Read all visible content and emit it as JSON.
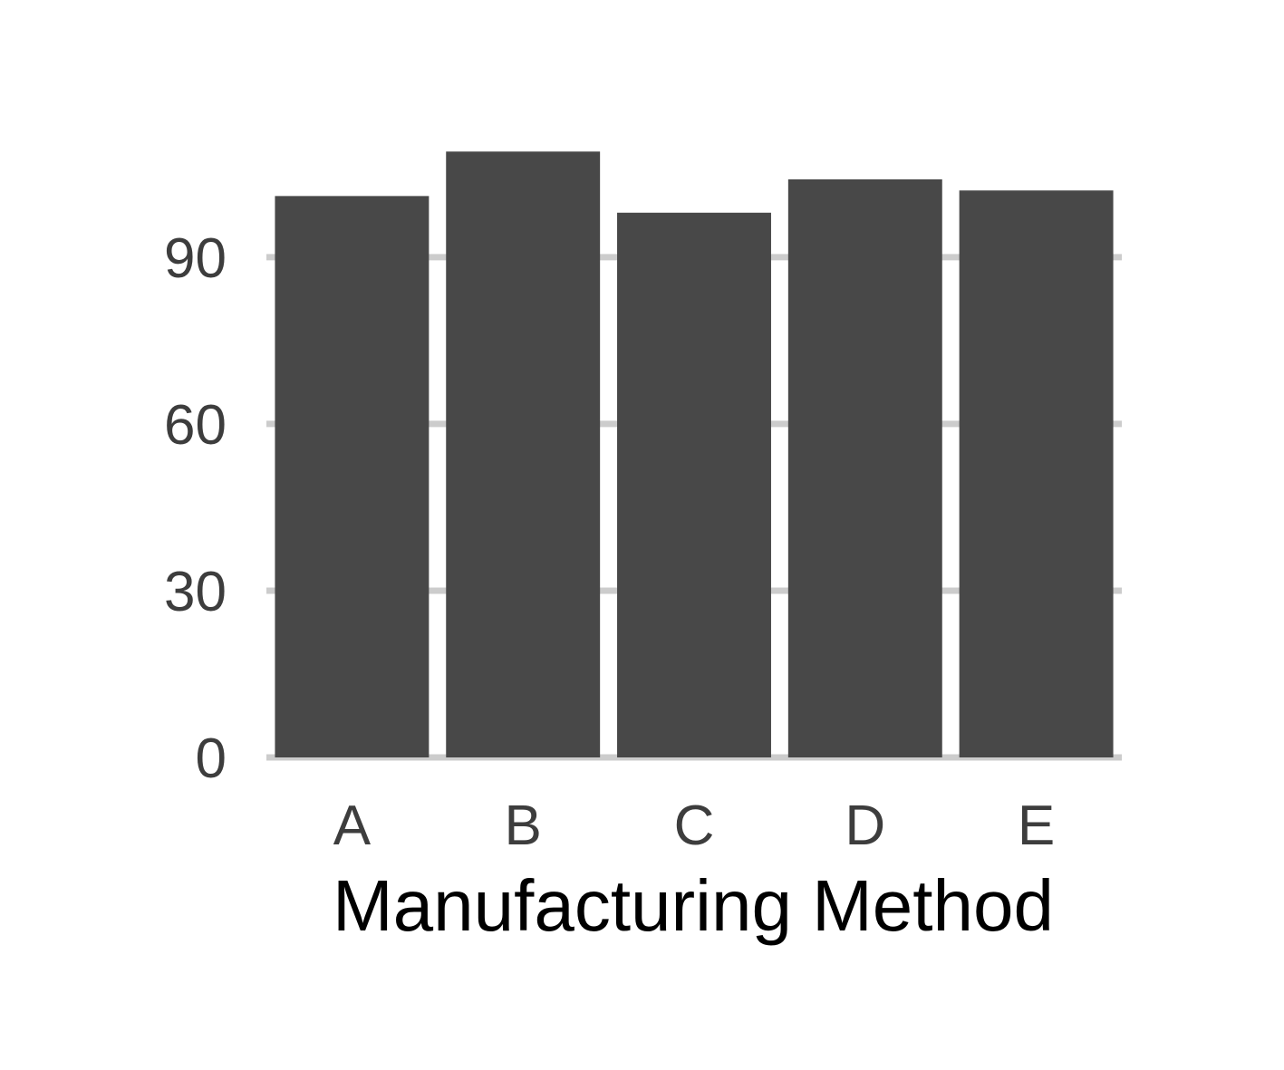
{
  "chart_data": {
    "type": "bar",
    "title": "",
    "xlabel": "Manufacturing Method",
    "ylabel": "",
    "categories": [
      "A",
      "B",
      "C",
      "D",
      "E"
    ],
    "values": [
      101,
      109,
      98,
      104,
      102
    ],
    "ylim": [
      0,
      109
    ],
    "yticks": [
      0,
      30,
      60,
      90
    ],
    "ytick_labels": [
      "0",
      "30",
      "60",
      "90"
    ],
    "grid": "horizontal major only",
    "legend": "none",
    "colors": {
      "bar": "#484848",
      "grid": "#cccccc",
      "tick_text": "#3d3d3d",
      "axis_title": "#000000",
      "background": "#ffffff"
    }
  }
}
